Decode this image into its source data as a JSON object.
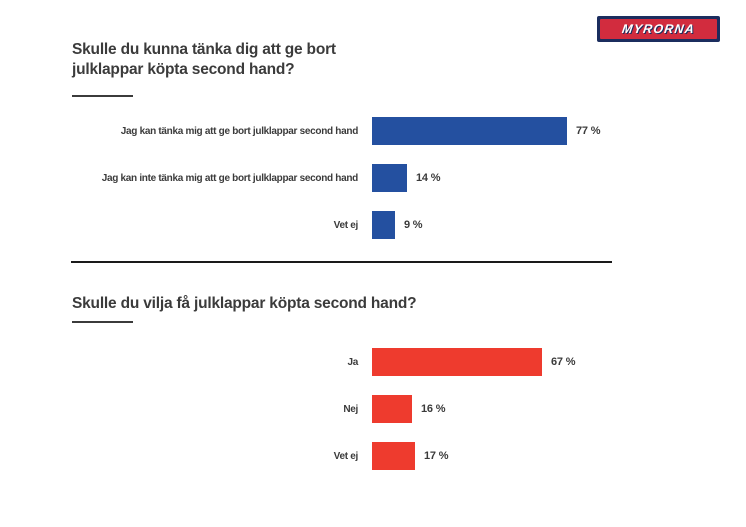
{
  "logo": {
    "text": "MYRORNA",
    "border_color": "#1b2d5e",
    "bg_color": "#d22c3e",
    "text_color": "#ffffff"
  },
  "colors": {
    "chart1_bar": "#2450a0",
    "chart2_bar": "#ee3b2e",
    "text_dark": "#3b3b3b",
    "divider": "#1a1a1a"
  },
  "chart_data": [
    {
      "type": "bar",
      "orientation": "horizontal",
      "title": "Skulle du kunna tänka dig att ge bort\njulklappar köpta second hand?",
      "categories": [
        "Jag kan tänka mig att ge bort julklappar second hand",
        "Jag kan inte tänka mig att ge bort julklappar second hand",
        "Vet ej"
      ],
      "values": [
        77,
        14,
        9
      ],
      "value_labels": [
        "77 %",
        "14 %",
        "9 %"
      ],
      "bar_color": "#2450a0",
      "unit": "%",
      "xlim": [
        0,
        100
      ],
      "grid": false,
      "legend": false
    },
    {
      "type": "bar",
      "orientation": "horizontal",
      "title": "Skulle du vilja få julklappar köpta second hand?",
      "categories": [
        "Ja",
        "Nej",
        "Vet ej"
      ],
      "values": [
        67,
        16,
        17
      ],
      "value_labels": [
        "67 %",
        "16 %",
        "17 %"
      ],
      "bar_color": "#ee3b2e",
      "unit": "%",
      "xlim": [
        0,
        100
      ],
      "grid": false,
      "legend": false
    }
  ]
}
